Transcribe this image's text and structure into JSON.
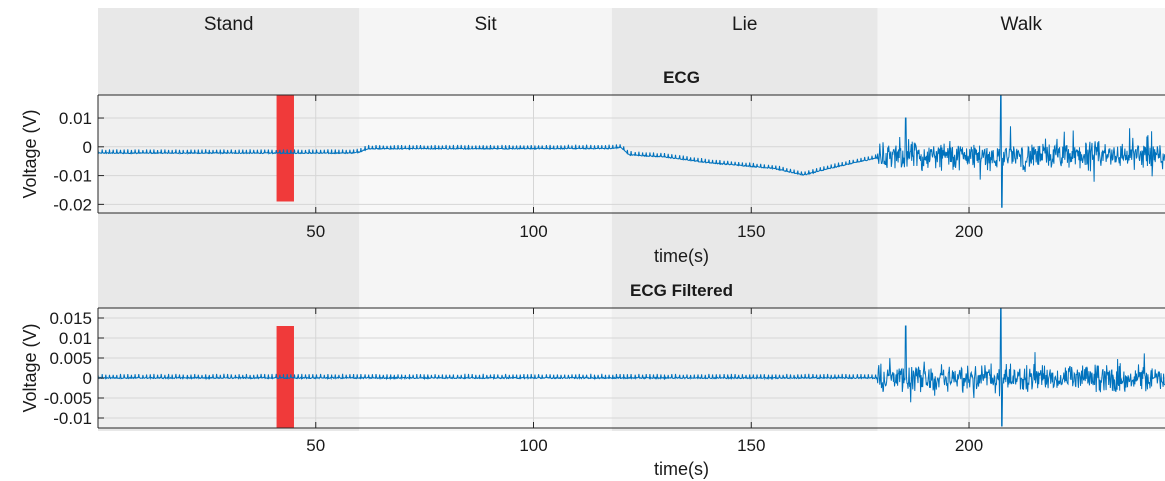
{
  "chart_data": {
    "type": "line",
    "activities": [
      {
        "label": "Stand",
        "start": 0,
        "end": 60,
        "color": "#e8e8e8"
      },
      {
        "label": "Sit",
        "start": 60,
        "end": 118,
        "color": "#f5f5f5"
      },
      {
        "label": "Lie",
        "start": 118,
        "end": 179,
        "color": "#e8e8e8"
      },
      {
        "label": "Walk",
        "start": 179,
        "end": 245,
        "color": "#f5f5f5"
      }
    ],
    "xlim": [
      0,
      245
    ],
    "highlight": {
      "start": 41,
      "end": 45,
      "color": "#f03a3a"
    },
    "panels": [
      {
        "title": "ECG",
        "xlabel": "time(s)",
        "ylabel": "Voltage (V)",
        "ylim": [
          -0.023,
          0.018
        ],
        "xticks": [
          {
            "v": 50,
            "label": "50"
          },
          {
            "v": 100,
            "label": "100"
          },
          {
            "v": 150,
            "label": "150"
          },
          {
            "v": 200,
            "label": "200"
          }
        ],
        "yticks": [
          {
            "v": 0.01,
            "label": "0.01"
          },
          {
            "v": 0,
            "label": "0"
          },
          {
            "v": -0.01,
            "label": "-0.01"
          },
          {
            "v": -0.02,
            "label": "-0.02"
          }
        ],
        "highlight_range": [
          -0.019,
          0.018
        ],
        "baseline": [
          [
            0,
            -0.0022
          ],
          [
            58,
            -0.0022
          ],
          [
            60,
            -0.0018
          ],
          [
            62,
            -0.0007
          ],
          [
            118,
            -0.0006
          ],
          [
            120,
            -0.0002
          ],
          [
            122,
            -0.0028
          ],
          [
            130,
            -0.0035
          ],
          [
            140,
            -0.0055
          ],
          [
            150,
            -0.0068
          ],
          [
            155,
            -0.0075
          ],
          [
            162,
            -0.0098
          ],
          [
            170,
            -0.0068
          ],
          [
            179,
            -0.0038
          ],
          [
            185,
            -0.0032
          ],
          [
            200,
            -0.0032
          ],
          [
            215,
            -0.0035
          ],
          [
            230,
            -0.003
          ],
          [
            245,
            -0.0028
          ]
        ],
        "series": [
          {
            "color": "#0072bd"
          }
        ]
      },
      {
        "title": "ECG Filtered",
        "xlabel": "time(s)",
        "ylabel": "Voltage (V)",
        "ylim": [
          -0.0125,
          0.0175
        ],
        "xticks": [
          {
            "v": 50,
            "label": "50"
          },
          {
            "v": 100,
            "label": "100"
          },
          {
            "v": 150,
            "label": "150"
          },
          {
            "v": 200,
            "label": "200"
          }
        ],
        "yticks": [
          {
            "v": 0.015,
            "label": "0.015"
          },
          {
            "v": 0.01,
            "label": "0.01"
          },
          {
            "v": 0.005,
            "label": "0.005"
          },
          {
            "v": 0,
            "label": "0"
          },
          {
            "v": -0.005,
            "label": "-0.005"
          },
          {
            "v": -0.01,
            "label": "-0.01"
          }
        ],
        "highlight_range": [
          -0.0125,
          0.013
        ],
        "baseline": [
          [
            0,
            0
          ],
          [
            245,
            0
          ]
        ],
        "series": [
          {
            "color": "#0072bd"
          }
        ]
      }
    ]
  }
}
